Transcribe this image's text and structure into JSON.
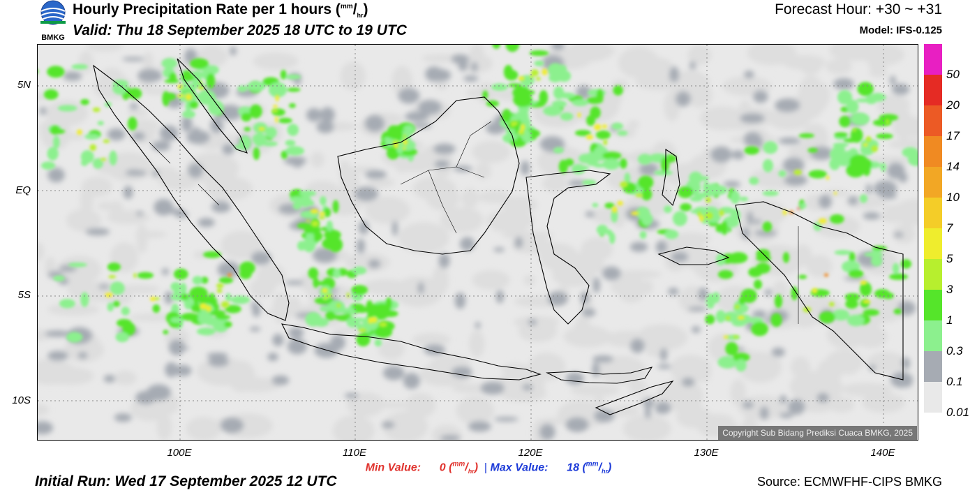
{
  "header": {
    "logo_text": "BMKG",
    "title_main": "Hourly Precipitation Rate per 1 hours (",
    "title_unit_top": "mm",
    "title_unit_slash": "/",
    "title_unit_bottom": "hr",
    "title_close": ")",
    "valid": "Valid: Thu 18 September 2025 18 UTC to 19 UTC",
    "forecast_hour": "Forecast Hour: +30 ~ +31",
    "model": "Model: IFS-0.125"
  },
  "map": {
    "lat_labels": [
      "5N",
      "EQ",
      "5S",
      "10S"
    ],
    "lon_labels": [
      "100E",
      "110E",
      "120E",
      "130E",
      "140E"
    ],
    "copyright": "Copyright Sub Bidang Prediksi Cuaca BMKG, 2025"
  },
  "legend": {
    "labels": [
      "50",
      "20",
      "17",
      "14",
      "10",
      "7",
      "5",
      "3",
      "1",
      "0.3",
      "0.1",
      "0.01"
    ],
    "colors": [
      "#e81fc2",
      "#e52b24",
      "#ec5a25",
      "#f08a22",
      "#f2a725",
      "#f4cd28",
      "#efed2d",
      "#b7ef2e",
      "#55e52a",
      "#8cf08e",
      "#a6abb3",
      "#e9e9e9"
    ],
    "palette": {
      "light_gray": "#dedede",
      "mid_gray": "#a6abb3",
      "light_green": "#8cf08e",
      "green": "#55e52a",
      "yellow_green": "#b7ef2e",
      "yellow": "#efed2d",
      "orange": "#f08a22",
      "red": "#e52b24",
      "magenta": "#e81fc2"
    }
  },
  "footer": {
    "min_label": "Min Value:",
    "min_value": "0",
    "max_label": "Max Value:",
    "max_value": "18",
    "unit_top": "mm",
    "unit_slash": "/",
    "unit_bottom": "hr",
    "separator": "|",
    "initial_run": "Initial Run: Wed 17 September 2025 12 UTC",
    "source": "Source: ECMWFHF-CIPS BMKG"
  }
}
